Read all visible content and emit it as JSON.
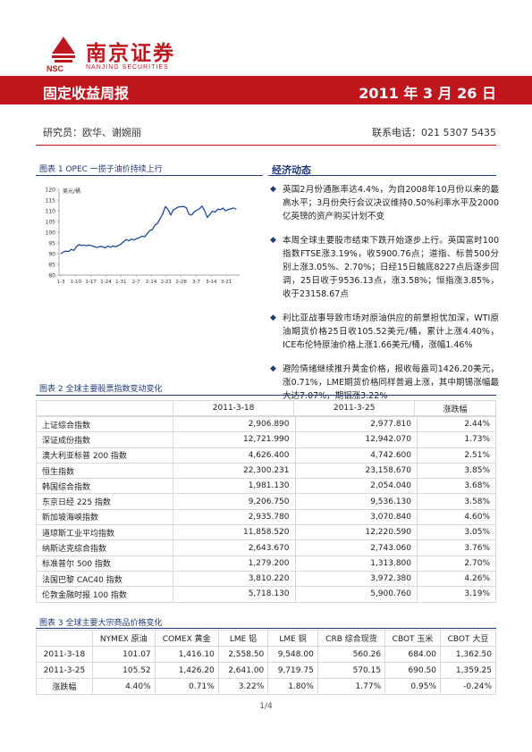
{
  "brand": {
    "name_cn": "南京证券",
    "abbr": "NSC",
    "name_en": "NANJING SECURITIES",
    "color": "#c0161e"
  },
  "header": {
    "title": "固定收益周报",
    "date": "2011 年 3 月 26 日"
  },
  "meta": {
    "author": "研究员：欧华、谢婉丽",
    "phone": "联系电话：021 5307 5435"
  },
  "figure1": {
    "caption": "图表 1   OPEC 一揽子油价持续上行"
  },
  "chart_data": {
    "type": "line",
    "title": "",
    "ylabel": "美元/桶",
    "xlabel": "",
    "ylim": [
      80,
      120
    ],
    "yticks": [
      80,
      85,
      90,
      95,
      100,
      105,
      110,
      115,
      120
    ],
    "xticklabels": [
      "1-3",
      "1-10",
      "1-17",
      "1-24",
      "1-31",
      "2-7",
      "2-14",
      "2-21",
      "2-28",
      "3-7",
      "3-14",
      "3-21"
    ],
    "grid": false,
    "color": "#1f4e9c",
    "series": [
      {
        "values": [
          90.0,
          90.8,
          91.2,
          91.0,
          92.0,
          91.5,
          93.3,
          94.2,
          93.8,
          94.0,
          93.7,
          94.0,
          93.6,
          93.2,
          92.9,
          93.4,
          93.2,
          92.7,
          93.5,
          93.0,
          93.6,
          93.2,
          93.8,
          94.5,
          95.5,
          96.6,
          96.0,
          96.8,
          96.4,
          97.0,
          97.4,
          98.2,
          97.8,
          99.3,
          100.7,
          101.2,
          103.3,
          104.2,
          106.4,
          108.6,
          112.0,
          110.6,
          108.0,
          110.4,
          111.1,
          111.8,
          111.9,
          112.0,
          111.4,
          108.4,
          108.0,
          109.5,
          110.3,
          110.9,
          112.2,
          110.0,
          106.9,
          108.3,
          109.8,
          109.4,
          110.7,
          110.5,
          111.2,
          110.0,
          110.6,
          110.9,
          111.3,
          110.8
        ]
      }
    ]
  },
  "news": {
    "title": "经济动态",
    "items": [
      "英国2月份通胀率达4.4%，为自2008年10月份以来的最高水平；3月份央行会议决议维持0.50%利率水平及2000亿英镑的资产购买计划不变",
      "本周全球主要股市结束下跌开始逐步上行。英国富时100指数FTSE涨3.19%，收5900.76点；道指、标普500分别上涨3.05%、2.70%；日经15日触底8227点后逐步回调，25日收于9536.13点，涨3.58%；恒指涨3.85%，收于23158.67点",
      "利比亚战事导致市场对原油供应的前景担忧加深，WTI原油期货价格25日收105.52美元/桶，累计上涨4.40%，ICE布伦特原油价格上涨1.66美元/桶，涨幅1.46%",
      "避险情绪继续推升黄金价格，报收每盎司1426.20美元，涨0.71%，LME期货价格同样普遍上涨，其中期锡涨幅最大达7.07%，期铝涨3.22%"
    ]
  },
  "table2": {
    "caption": "图表 2   全球主要股票指数变动变化",
    "headers": [
      "",
      "2011-3-18",
      "2011-3-25",
      "涨跌幅"
    ],
    "rows": [
      [
        "上证综合指数",
        "2,906.890",
        "2,977.810",
        "2.44%"
      ],
      [
        "深证成份指数",
        "12,721.990",
        "12,942.070",
        "1.73%"
      ],
      [
        "澳大利亚标普 200 指数",
        "4,626.400",
        "4,742.600",
        "2.51%"
      ],
      [
        "恒生指数",
        "22,300.231",
        "23,158.670",
        "3.85%"
      ],
      [
        "韩国综合指数",
        "1,981.130",
        "2,054.040",
        "3.68%"
      ],
      [
        "东京日经 225 指数",
        "9,206.750",
        "9,536.130",
        "3.58%"
      ],
      [
        "新加坡海峡指数",
        "2,935.780",
        "3,070.840",
        "4.60%"
      ],
      [
        "道琼斯工业平均指数",
        "11,858.520",
        "12,220.590",
        "3.05%"
      ],
      [
        "纳斯达克综合指数",
        "2,643.670",
        "2,743.060",
        "3.76%"
      ],
      [
        "标准普尔 500 指数",
        "1,279.200",
        "1,313.800",
        "2.70%"
      ],
      [
        "法国巴黎 CAC40 指数",
        "3,810.220",
        "3,972.380",
        "4.26%"
      ],
      [
        "伦敦金融时报 100 指数",
        "5,718.130",
        "5,900.760",
        "3.19%"
      ]
    ]
  },
  "table3": {
    "caption": "图表 3   全球主要大宗商品价格变化",
    "headers": [
      "",
      "NYMEX 原油",
      "COMEX 黄金",
      "LME 铝",
      "LME 铜",
      "CRB 综合现货",
      "CBOT 玉米",
      "CBOT 大豆"
    ],
    "rows": [
      [
        "2011-3-18",
        "101.07",
        "1,416.10",
        "2,558.50",
        "9,548.00",
        "560.26",
        "684.00",
        "1,362.50"
      ],
      [
        "2011-3-25",
        "105.52",
        "1,426.20",
        "2,641.00",
        "9,719.75",
        "570.15",
        "690.50",
        "1,359.25"
      ],
      [
        "涨跌幅",
        "4.40%",
        "0.71%",
        "3.22%",
        "1.80%",
        "1.77%",
        "0.95%",
        "-0.24%"
      ]
    ]
  },
  "footer": {
    "page": "1/4"
  }
}
